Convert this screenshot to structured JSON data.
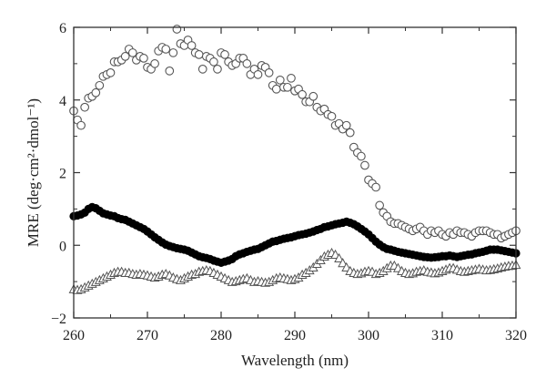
{
  "chart_data": {
    "type": "scatter",
    "title": "",
    "xlabel": "Wavelength (nm)",
    "ylabel": "MRE (deg·cm²·dmol⁻¹)",
    "xlim": [
      260,
      320
    ],
    "ylim": [
      -2,
      6
    ],
    "xticks": [
      260,
      270,
      280,
      290,
      300,
      310,
      320
    ],
    "yticks": [
      -2,
      0,
      2,
      4,
      6
    ],
    "ytick_labels": [
      "−2",
      "0",
      "2",
      "4",
      "6"
    ],
    "grid": false,
    "legend": "none",
    "series": [
      {
        "marker": "open-circle",
        "color": "#555555",
        "x": [
          260,
          260.5,
          261,
          261.5,
          262,
          262.5,
          263,
          263.5,
          264,
          264.5,
          265,
          265.5,
          266,
          266.5,
          267,
          267.5,
          268,
          268.5,
          269,
          269.5,
          270,
          270.5,
          271,
          271.5,
          272,
          272.5,
          273,
          273.5,
          274,
          274.5,
          275,
          275.5,
          276,
          276.5,
          277,
          277.5,
          278,
          278.5,
          279,
          279.5,
          280,
          280.5,
          281,
          281.5,
          282,
          282.5,
          283,
          283.5,
          284,
          284.5,
          285,
          285.5,
          286,
          286.5,
          287,
          287.5,
          288,
          288.5,
          289,
          289.5,
          290,
          290.5,
          291,
          291.5,
          292,
          292.5,
          293,
          293.5,
          294,
          294.5,
          295,
          295.5,
          296,
          296.5,
          297,
          297.5,
          298,
          298.5,
          299,
          299.5,
          300,
          300.5,
          301,
          301.5,
          302,
          302.5,
          303,
          303.5,
          304,
          304.5,
          305,
          305.5,
          306,
          306.5,
          307,
          307.5,
          308,
          308.5,
          309,
          309.5,
          310,
          310.5,
          311,
          311.5,
          312,
          312.5,
          313,
          313.5,
          314,
          314.5,
          315,
          315.5,
          316,
          316.5,
          317,
          317.5,
          318,
          318.5,
          319,
          319.5,
          320
        ],
        "y": [
          3.7,
          3.45,
          3.3,
          3.8,
          4.05,
          4.1,
          4.2,
          4.4,
          4.65,
          4.7,
          4.75,
          5.05,
          5.05,
          5.1,
          5.2,
          5.4,
          5.3,
          5.1,
          5.2,
          5.15,
          4.9,
          4.85,
          5.0,
          5.35,
          5.45,
          5.4,
          4.8,
          5.3,
          5.95,
          5.55,
          5.5,
          5.65,
          5.5,
          5.3,
          5.25,
          4.85,
          5.2,
          5.15,
          5.05,
          4.85,
          5.3,
          5.25,
          5.05,
          4.95,
          5.0,
          5.15,
          5.15,
          5.0,
          4.7,
          4.85,
          4.7,
          4.95,
          4.9,
          4.75,
          4.4,
          4.3,
          4.55,
          4.35,
          4.35,
          4.6,
          4.25,
          4.3,
          4.15,
          3.95,
          3.95,
          4.1,
          3.8,
          3.7,
          3.75,
          3.6,
          3.55,
          3.3,
          3.35,
          3.2,
          3.3,
          3.1,
          2.7,
          2.55,
          2.45,
          2.2,
          1.8,
          1.7,
          1.6,
          1.1,
          0.9,
          0.8,
          0.65,
          0.6,
          0.6,
          0.55,
          0.5,
          0.45,
          0.4,
          0.45,
          0.5,
          0.4,
          0.3,
          0.4,
          0.35,
          0.4,
          0.3,
          0.25,
          0.35,
          0.3,
          0.4,
          0.35,
          0.35,
          0.3,
          0.25,
          0.35,
          0.4,
          0.4,
          0.4,
          0.35,
          0.3,
          0.3,
          0.2,
          0.25,
          0.3,
          0.35,
          0.4
        ]
      },
      {
        "marker": "filled-circle",
        "color": "#000000",
        "x": [
          260,
          260.5,
          261,
          261.5,
          262,
          262.5,
          263,
          263.5,
          264,
          264.5,
          265,
          265.5,
          266,
          266.5,
          267,
          267.5,
          268,
          268.5,
          269,
          269.5,
          270,
          270.5,
          271,
          271.5,
          272,
          272.5,
          273,
          273.5,
          274,
          274.5,
          275,
          275.5,
          276,
          276.5,
          277,
          277.5,
          278,
          278.5,
          279,
          279.5,
          280,
          280.5,
          281,
          281.5,
          282,
          282.5,
          283,
          283.5,
          284,
          284.5,
          285,
          285.5,
          286,
          286.5,
          287,
          287.5,
          288,
          288.5,
          289,
          289.5,
          290,
          290.5,
          291,
          291.5,
          292,
          292.5,
          293,
          293.5,
          294,
          294.5,
          295,
          295.5,
          296,
          296.5,
          297,
          297.5,
          298,
          298.5,
          299,
          299.5,
          300,
          300.5,
          301,
          301.5,
          302,
          302.5,
          303,
          303.5,
          304,
          304.5,
          305,
          305.5,
          306,
          306.5,
          307,
          307.5,
          308,
          308.5,
          309,
          309.5,
          310,
          310.5,
          311,
          311.5,
          312,
          312.5,
          313,
          313.5,
          314,
          314.5,
          315,
          315.5,
          316,
          316.5,
          317,
          317.5,
          318,
          318.5,
          319,
          319.5,
          320
        ],
        "y": [
          0.8,
          0.82,
          0.85,
          0.9,
          1.0,
          1.05,
          1.02,
          0.95,
          0.88,
          0.85,
          0.82,
          0.8,
          0.75,
          0.72,
          0.7,
          0.65,
          0.6,
          0.55,
          0.5,
          0.45,
          0.38,
          0.3,
          0.22,
          0.15,
          0.08,
          0.02,
          -0.02,
          -0.05,
          -0.08,
          -0.1,
          -0.12,
          -0.15,
          -0.2,
          -0.25,
          -0.3,
          -0.33,
          -0.35,
          -0.38,
          -0.42,
          -0.45,
          -0.48,
          -0.45,
          -0.42,
          -0.38,
          -0.3,
          -0.25,
          -0.22,
          -0.18,
          -0.15,
          -0.12,
          -0.1,
          -0.05,
          0.0,
          0.05,
          0.1,
          0.12,
          0.15,
          0.18,
          0.2,
          0.22,
          0.25,
          0.28,
          0.3,
          0.32,
          0.35,
          0.38,
          0.42,
          0.45,
          0.5,
          0.52,
          0.55,
          0.58,
          0.6,
          0.62,
          0.65,
          0.62,
          0.58,
          0.52,
          0.45,
          0.38,
          0.3,
          0.2,
          0.1,
          0.02,
          -0.05,
          -0.1,
          -0.12,
          -0.15,
          -0.18,
          -0.2,
          -0.22,
          -0.24,
          -0.26,
          -0.28,
          -0.3,
          -0.32,
          -0.33,
          -0.34,
          -0.33,
          -0.32,
          -0.3,
          -0.3,
          -0.28,
          -0.3,
          -0.32,
          -0.3,
          -0.28,
          -0.26,
          -0.25,
          -0.22,
          -0.2,
          -0.18,
          -0.15,
          -0.12,
          -0.12,
          -0.12,
          -0.14,
          -0.16,
          -0.18,
          -0.2,
          -0.22
        ]
      },
      {
        "marker": "open-triangle",
        "color": "#555555",
        "x": [
          260,
          260.5,
          261,
          261.5,
          262,
          262.5,
          263,
          263.5,
          264,
          264.5,
          265,
          265.5,
          266,
          266.5,
          267,
          267.5,
          268,
          268.5,
          269,
          269.5,
          270,
          270.5,
          271,
          271.5,
          272,
          272.5,
          273,
          273.5,
          274,
          274.5,
          275,
          275.5,
          276,
          276.5,
          277,
          277.5,
          278,
          278.5,
          279,
          279.5,
          280,
          280.5,
          281,
          281.5,
          282,
          282.5,
          283,
          283.5,
          284,
          284.5,
          285,
          285.5,
          286,
          286.5,
          287,
          287.5,
          288,
          288.5,
          289,
          289.5,
          290,
          290.5,
          291,
          291.5,
          292,
          292.5,
          293,
          293.5,
          294,
          294.5,
          295,
          295.5,
          296,
          296.5,
          297,
          297.5,
          298,
          298.5,
          299,
          299.5,
          300,
          300.5,
          301,
          301.5,
          302,
          302.5,
          303,
          303.5,
          304,
          304.5,
          305,
          305.5,
          306,
          306.5,
          307,
          307.5,
          308,
          308.5,
          309,
          309.5,
          310,
          310.5,
          311,
          311.5,
          312,
          312.5,
          313,
          313.5,
          314,
          314.5,
          315,
          315.5,
          316,
          316.5,
          317,
          317.5,
          318,
          318.5,
          319,
          319.5,
          320
        ],
        "y": [
          -1.2,
          -1.22,
          -1.2,
          -1.15,
          -1.1,
          -1.05,
          -1.0,
          -0.95,
          -0.9,
          -0.85,
          -0.8,
          -0.75,
          -0.72,
          -0.72,
          -0.75,
          -0.75,
          -0.78,
          -0.8,
          -0.78,
          -0.8,
          -0.82,
          -0.85,
          -0.88,
          -0.85,
          -0.8,
          -0.78,
          -0.82,
          -0.88,
          -0.92,
          -0.95,
          -0.9,
          -0.85,
          -0.8,
          -0.78,
          -0.72,
          -0.7,
          -0.68,
          -0.7,
          -0.75,
          -0.8,
          -0.85,
          -0.9,
          -0.95,
          -1.0,
          -0.98,
          -0.95,
          -0.92,
          -0.9,
          -0.95,
          -1.0,
          -0.98,
          -1.0,
          -1.02,
          -1.0,
          -0.95,
          -0.9,
          -0.88,
          -0.9,
          -0.92,
          -0.95,
          -0.92,
          -0.88,
          -0.8,
          -0.75,
          -0.68,
          -0.6,
          -0.5,
          -0.4,
          -0.3,
          -0.25,
          -0.2,
          -0.25,
          -0.35,
          -0.48,
          -0.6,
          -0.7,
          -0.75,
          -0.78,
          -0.76,
          -0.72,
          -0.7,
          -0.72,
          -0.78,
          -0.75,
          -0.7,
          -0.62,
          -0.55,
          -0.55,
          -0.62,
          -0.7,
          -0.75,
          -0.78,
          -0.76,
          -0.72,
          -0.7,
          -0.68,
          -0.72,
          -0.74,
          -0.76,
          -0.74,
          -0.7,
          -0.66,
          -0.62,
          -0.62,
          -0.66,
          -0.7,
          -0.72,
          -0.7,
          -0.68,
          -0.66,
          -0.64,
          -0.66,
          -0.68,
          -0.67,
          -0.65,
          -0.63,
          -0.6,
          -0.58,
          -0.56,
          -0.55,
          -0.53
        ]
      }
    ]
  }
}
